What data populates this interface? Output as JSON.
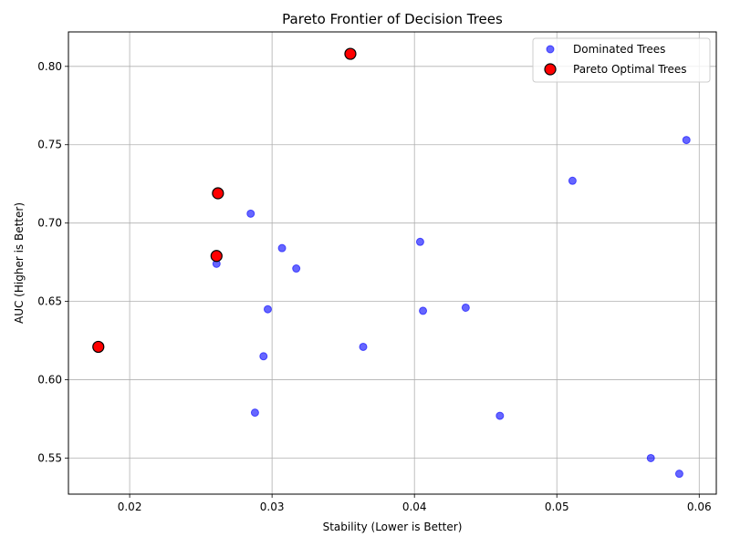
{
  "chart_data": {
    "type": "scatter",
    "title": "Pareto Frontier of Decision Trees",
    "xlabel": "Stability (Lower is Better)",
    "ylabel": "AUC (Higher is Better)",
    "xlim": [
      0.0157,
      0.0612
    ],
    "ylim": [
      0.527,
      0.822
    ],
    "xticks": [
      0.02,
      0.03,
      0.04,
      0.05,
      0.06
    ],
    "xtick_labels": [
      "0.02",
      "0.03",
      "0.04",
      "0.05",
      "0.06"
    ],
    "yticks": [
      0.55,
      0.6,
      0.65,
      0.7,
      0.75,
      0.8
    ],
    "ytick_labels": [
      "0.55",
      "0.60",
      "0.65",
      "0.70",
      "0.75",
      "0.80"
    ],
    "grid": true,
    "legend_position": "top-right",
    "series": [
      {
        "name": "Dominated Trees",
        "color": "#0000ff",
        "marker": "circle",
        "points": [
          {
            "x": 0.0591,
            "y": 0.753
          },
          {
            "x": 0.0511,
            "y": 0.727
          },
          {
            "x": 0.0285,
            "y": 0.706
          },
          {
            "x": 0.0404,
            "y": 0.688
          },
          {
            "x": 0.0307,
            "y": 0.684
          },
          {
            "x": 0.0317,
            "y": 0.671
          },
          {
            "x": 0.0261,
            "y": 0.674
          },
          {
            "x": 0.0297,
            "y": 0.645
          },
          {
            "x": 0.0406,
            "y": 0.644
          },
          {
            "x": 0.0436,
            "y": 0.646
          },
          {
            "x": 0.0364,
            "y": 0.621
          },
          {
            "x": 0.0294,
            "y": 0.615
          },
          {
            "x": 0.0288,
            "y": 0.579
          },
          {
            "x": 0.046,
            "y": 0.577
          },
          {
            "x": 0.0566,
            "y": 0.55
          },
          {
            "x": 0.0586,
            "y": 0.54
          }
        ]
      },
      {
        "name": "Pareto Optimal Trees",
        "color": "#ff0000",
        "marker": "circle",
        "points": [
          {
            "x": 0.0355,
            "y": 0.808
          },
          {
            "x": 0.0262,
            "y": 0.719
          },
          {
            "x": 0.0261,
            "y": 0.679
          },
          {
            "x": 0.0178,
            "y": 0.621
          }
        ]
      }
    ]
  }
}
